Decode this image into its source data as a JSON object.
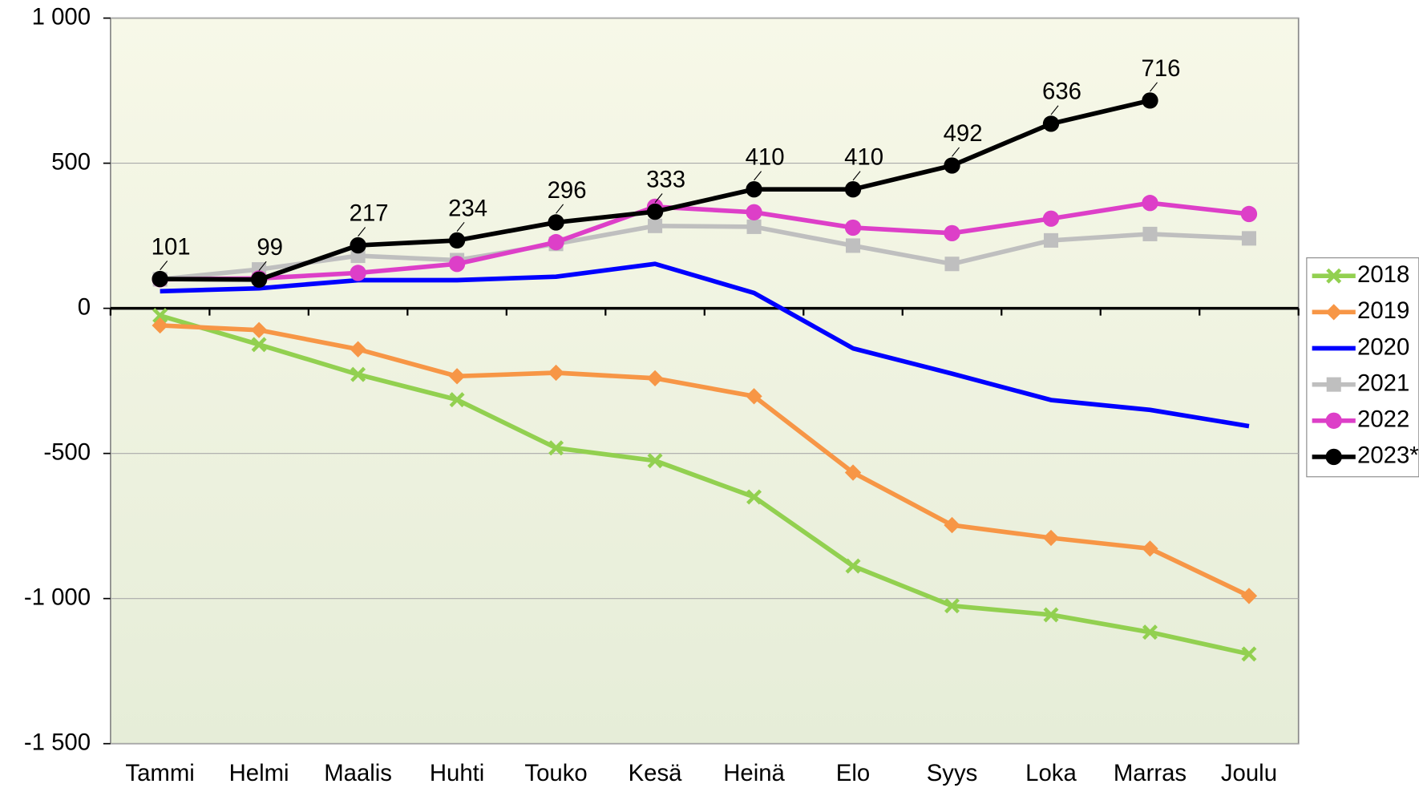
{
  "chart_data": {
    "type": "line",
    "categories": [
      "Tammi",
      "Helmi",
      "Maalis",
      "Huhti",
      "Touko",
      "Kesä",
      "Heinä",
      "Elo",
      "Syys",
      "Loka",
      "Marras",
      "Joulu"
    ],
    "series": [
      {
        "name": "2018",
        "color": "#92d050",
        "marker": "x",
        "values": [
          -25,
          -125,
          -228,
          -315,
          -481,
          -525,
          -650,
          -888,
          -1025,
          -1056,
          -1116,
          -1191
        ]
      },
      {
        "name": "2019",
        "color": "#f79646",
        "marker": "diamond",
        "values": [
          -59,
          -75,
          -141,
          -234,
          -222,
          -241,
          -303,
          -566,
          -747,
          -791,
          -828,
          -991
        ]
      },
      {
        "name": "2020",
        "color": "#0000ff",
        "marker": "none",
        "values": [
          59,
          69,
          97,
          97,
          109,
          153,
          53,
          -138,
          -225,
          -316,
          -350,
          -406
        ]
      },
      {
        "name": "2021",
        "color": "#bfbfbf",
        "marker": "square",
        "values": [
          100,
          134,
          181,
          166,
          222,
          284,
          281,
          216,
          153,
          234,
          256,
          241
        ]
      },
      {
        "name": "2022",
        "color": "#dd3fc8",
        "marker": "circle",
        "values": [
          100,
          103,
          122,
          153,
          228,
          350,
          331,
          278,
          259,
          309,
          363,
          325
        ]
      },
      {
        "name": "2023*",
        "color": "#000000",
        "marker": "circle",
        "data_labels": true,
        "values": [
          101,
          99,
          217,
          234,
          296,
          333,
          410,
          410,
          492,
          636,
          716,
          null
        ]
      }
    ],
    "ylim": [
      -1500,
      1000
    ],
    "yticks": [
      {
        "value": -1500,
        "label": "-1 500"
      },
      {
        "value": -1000,
        "label": "-1 000"
      },
      -500,
      0,
      500,
      {
        "value": 1000,
        "label": "1 000"
      }
    ],
    "grid": true,
    "legend": "right"
  }
}
